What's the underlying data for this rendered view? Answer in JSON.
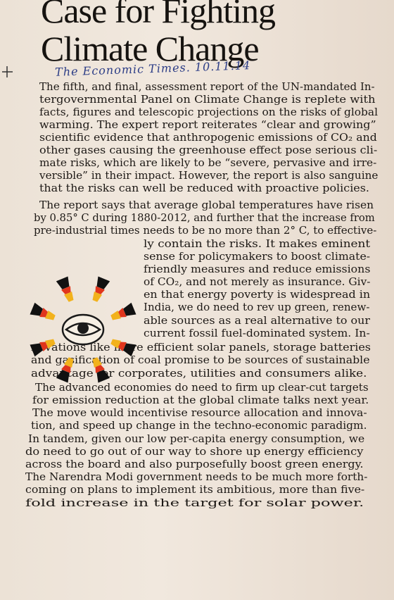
{
  "article": {
    "headline": [
      "Case for Fighting",
      "Climate Change"
    ],
    "handwritten_note": "The Economic Times. 10.11.14",
    "lines": [
      "The fifth, and final, assessment report of the UN-mandated In-",
      "tergovernmental Panel on Climate Change is replete with",
      "facts, figures and telescopic projections on the risks of global",
      "warming. The expert report reiterates “clear and growing”",
      "scientific evidence that anthropogenic emissions of CO₂ and",
      "other gases causing the greenhouse effect pose serious cli-",
      "mate risks, which are likely to be “severe, pervasive and irre-",
      "versible” in their impact. However, the report is also sanguine",
      "that the risks can well be reduced with proactive policies.",
      "The report says that average global temperatures have risen",
      "by 0.85° C during 1880-2012, and further that the increase from",
      "pre-industrial times needs to be no more than 2° C, to effective-",
      "ly contain the risks. It makes eminent",
      "sense for policymakers to boost climate-",
      "friendly measures and reduce emissions",
      "of CO₂, and not merely as insurance. Giv-",
      "en that energy poverty is widespread in",
      "India, we do need to rev up green, renew-",
      "able sources as a real alternative to our",
      "current fossil fuel-dominated system. In-",
      "novations like more efficient solar panels, storage batteries",
      "and gasification of coal promise to be sources of sustainable",
      "advantage for corporates, utilities and consumers alike.",
      "The advanced economies do need to firm up clear-cut targets",
      "for emission reduction at the global climate talks next year.",
      "The move would incentivise resource allocation and innova-",
      "tion, and speed up change in the techno-economic paradigm.",
      "In tandem, given our low per-capita energy consumption, we",
      "do need to go out of our way to shore up energy efficiency",
      "across the board and also purposefully boost green energy.",
      "The Narendra Modi government needs to be much more forth-",
      "coming on plans to implement its ambitious, more than five-",
      "fold increase in the target for solar power."
    ]
  },
  "colors": {
    "ink": "#1e1a17",
    "annotation_ink": "#2c3d86",
    "emblem_red": "#e0351c",
    "emblem_yellow": "#f2b21c"
  }
}
